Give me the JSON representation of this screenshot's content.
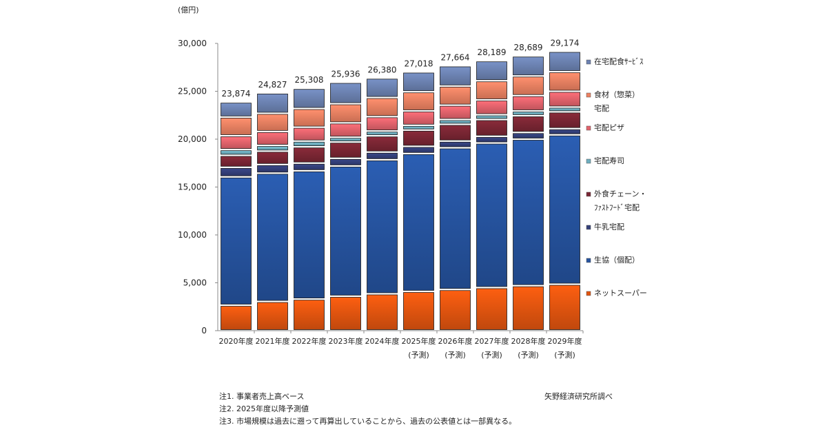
{
  "chart_data": {
    "type": "bar",
    "stacked": true,
    "title": "",
    "ylabel": "(億円)",
    "xlabel": "",
    "ylim": [
      0,
      30000
    ],
    "yticks": [
      0,
      5000,
      10000,
      15000,
      20000,
      25000,
      30000
    ],
    "ytick_labels": [
      "0",
      "5,000",
      "10,000",
      "15,000",
      "20,000",
      "25,000",
      "30,000"
    ],
    "categories": [
      "2020年度",
      "2021年度",
      "2022年度",
      "2023年度",
      "2024年度",
      "2025年度",
      "2026年度",
      "2027年度",
      "2028年度",
      "2029年度"
    ],
    "category_sublabels": [
      "",
      "",
      "",
      "",
      "",
      "(予測)",
      "(予測)",
      "(予測)",
      "(予測)",
      "(予測)"
    ],
    "totals": [
      23874,
      24827,
      25308,
      25936,
      26380,
      27018,
      27664,
      28189,
      28689,
      29174
    ],
    "total_labels": [
      "23,874",
      "24,827",
      "25,308",
      "25,936",
      "26,380",
      "27,018",
      "27,664",
      "28,189",
      "28,689",
      "29,174"
    ],
    "legend_position": "right",
    "series": [
      {
        "name": "ネットスーパー",
        "color": "#e2550f",
        "values": [
          2660,
          3050,
          3300,
          3600,
          3850,
          4100,
          4300,
          4500,
          4700,
          4850
        ]
      },
      {
        "name": "生協（個配）",
        "color": "#2654a0",
        "values": [
          13400,
          13400,
          13400,
          13600,
          14000,
          14400,
          14800,
          15100,
          15300,
          15600
        ]
      },
      {
        "name": "牛乳宅配",
        "color": "#34407a",
        "values": [
          1000,
          900,
          800,
          800,
          800,
          750,
          700,
          700,
          700,
          650
        ]
      },
      {
        "name": "外食チェーン・ファストフード宅配",
        "color": "#7a2634",
        "values": [
          1250,
          1400,
          1700,
          1700,
          1700,
          1700,
          1750,
          1750,
          1750,
          1750
        ]
      },
      {
        "name": "宅配寿司",
        "color": "#6fafc0",
        "values": [
          600,
          600,
          600,
          500,
          500,
          500,
          500,
          500,
          500,
          500
        ]
      },
      {
        "name": "宅配ピザ",
        "color": "#e2636c",
        "values": [
          1450,
          1450,
          1450,
          1500,
          1500,
          1500,
          1500,
          1550,
          1600,
          1650
        ]
      },
      {
        "name": "食材（惣菜）宅配",
        "color": "#ec8162",
        "values": [
          1950,
          1900,
          1950,
          2000,
          2000,
          2000,
          2000,
          2000,
          2050,
          2050
        ]
      },
      {
        "name": "在宅配食サービス",
        "color": "#6c82b2",
        "values": [
          1564,
          2127,
          2108,
          2236,
          2030,
          2068,
          2114,
          2089,
          2089,
          2124
        ]
      }
    ],
    "legend_lines": [
      [
        "在宅配食ｻｰﾋﾞｽ"
      ],
      [
        "食材（惣菜）",
        "宅配"
      ],
      [
        "宅配ピザ"
      ],
      [
        "宅配寿司"
      ],
      [
        "外食チェーン・",
        "ﾌｧｽﾄﾌｰﾄﾞ宅配"
      ],
      [
        "牛乳宅配"
      ],
      [
        "生協（個配）"
      ],
      [
        "ネットスーパー"
      ]
    ]
  },
  "notes": [
    "注1. 事業者売上高ベース",
    "注2. 2025年度以降予測値",
    "注3. 市場規模は過去に遡って再算出していることから、過去の公表値とは一部異なる。"
  ],
  "source": "矢野経済研究所調べ"
}
